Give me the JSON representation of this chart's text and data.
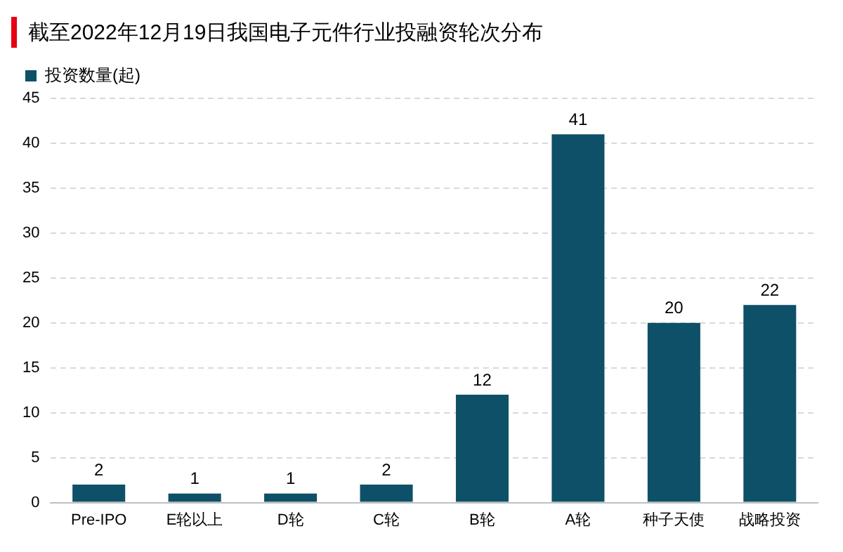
{
  "chart_data": {
    "type": "bar",
    "title": "截至2022年12月19日我国电子元件行业投融资轮次分布",
    "categories": [
      "Pre-IPO",
      "E轮以上",
      "D轮",
      "C轮",
      "B轮",
      "A轮",
      "种子天使",
      "战略投资"
    ],
    "series": [
      {
        "name": "投资数量(起)",
        "color": "#0e5068",
        "values": [
          2,
          1,
          1,
          2,
          12,
          41,
          20,
          22
        ]
      }
    ],
    "ylim": [
      0,
      45
    ],
    "yticks": [
      0,
      5,
      10,
      15,
      20,
      25,
      30,
      35,
      40,
      45
    ],
    "grid": "y",
    "legend": "top left",
    "data_labels": true
  }
}
